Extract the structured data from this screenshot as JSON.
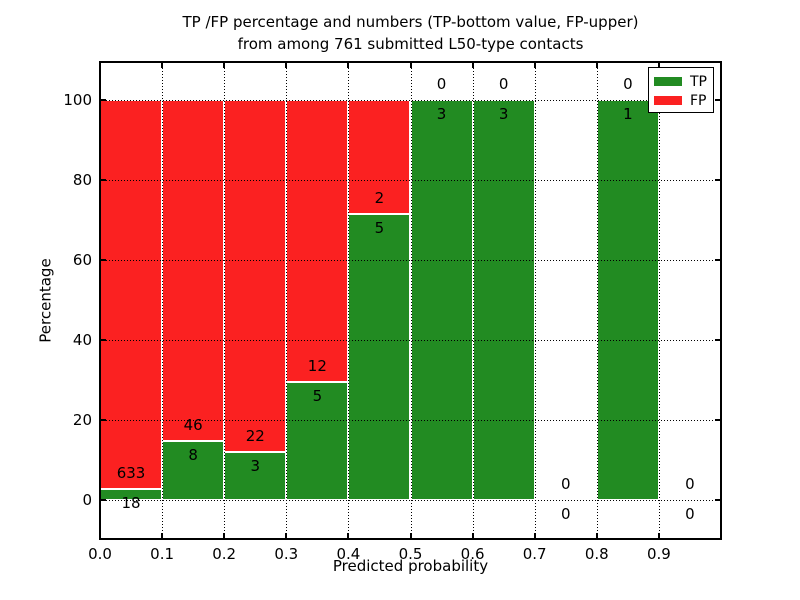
{
  "chart_data": {
    "type": "bar",
    "stacked": true,
    "normalized_to_percent": true,
    "title": "TP /FP percentage and numbers (TP-bottom value, FP-upper)\nfrom among 761 submitted L50-type contacts",
    "xlabel": "Predicted probability",
    "ylabel": "Percentage",
    "xlim": [
      0.0,
      1.0
    ],
    "ylim": [
      -9.75,
      109.5
    ],
    "grid": "dotted, drawn over bars",
    "legend_position": "upper right",
    "xtick_labels": [
      "0.0",
      "0.1",
      "0.2",
      "0.3",
      "0.4",
      "0.5",
      "0.6",
      "0.7",
      "0.8",
      "0.9"
    ],
    "ytick_values": [
      0,
      20,
      40,
      60,
      80,
      100
    ],
    "ytick_labels": [
      "0",
      "20",
      "40",
      "60",
      "80",
      "100"
    ],
    "bin_edges": [
      0.0,
      0.1,
      0.2,
      0.3,
      0.4,
      0.5,
      0.6,
      0.7,
      0.8,
      0.9,
      1.0
    ],
    "categories": [
      "0.0-0.1",
      "0.1-0.2",
      "0.2-0.3",
      "0.3-0.4",
      "0.4-0.5",
      "0.5-0.6",
      "0.6-0.7",
      "0.7-0.8",
      "0.8-0.9",
      "0.9-1.0"
    ],
    "series": [
      {
        "name": "TP",
        "color": "#228b22",
        "counts": [
          18,
          8,
          3,
          5,
          5,
          3,
          3,
          0,
          1,
          0
        ]
      },
      {
        "name": "FP",
        "color": "#fb2121",
        "counts": [
          633,
          46,
          22,
          12,
          2,
          0,
          0,
          0,
          0,
          0
        ]
      }
    ],
    "tp_percent_of_bin": [
      2.77,
      14.81,
      12.0,
      29.41,
      71.43,
      100,
      100,
      null,
      100,
      null
    ],
    "total_submitted": 761
  },
  "colors": {
    "background": "#ffffff",
    "spine": "#000000",
    "bar_edge": "#ffffff",
    "text": "#000000"
  }
}
